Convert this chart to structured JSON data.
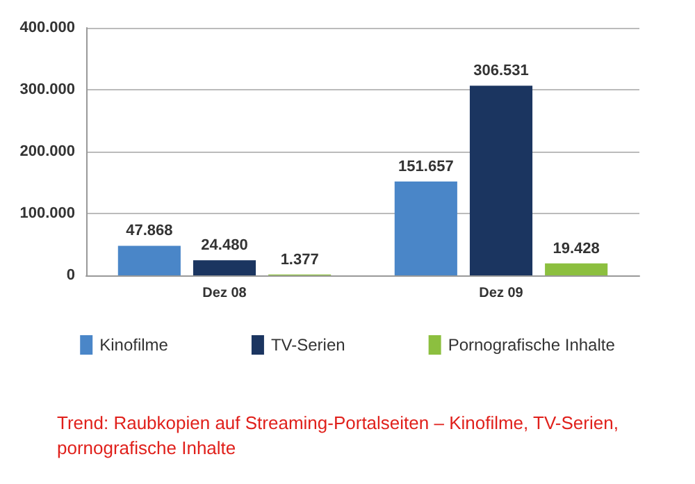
{
  "chart_data": {
    "type": "bar",
    "title": "Trend: Raubkopien auf Streaming-Portalseiten – Kinofilme, TV-Serien, pornografische Inhalte",
    "categories": [
      "Dez 08",
      "Dez 09"
    ],
    "series": [
      {
        "name": "Kinofilme",
        "color": "#4a86c8",
        "values": [
          47868,
          151657
        ],
        "value_labels": [
          "47.868",
          "151.657"
        ]
      },
      {
        "name": "TV-Serien",
        "color": "#1b3560",
        "values": [
          24480,
          306531
        ],
        "value_labels": [
          "24.480",
          "306.531"
        ]
      },
      {
        "name": "Pornografische Inhalte",
        "color": "#8cbf3f",
        "values": [
          1377,
          19428
        ],
        "value_labels": [
          "1.377",
          "19.428"
        ]
      }
    ],
    "ylim": [
      0,
      400000
    ],
    "yticks": [
      {
        "value": 0,
        "label": "0"
      },
      {
        "value": 100000,
        "label": "100.000"
      },
      {
        "value": 200000,
        "label": "200.000"
      },
      {
        "value": 300000,
        "label": "300.000"
      },
      {
        "value": 400000,
        "label": "400.000"
      }
    ],
    "grid": "y",
    "legend": "bottom"
  }
}
